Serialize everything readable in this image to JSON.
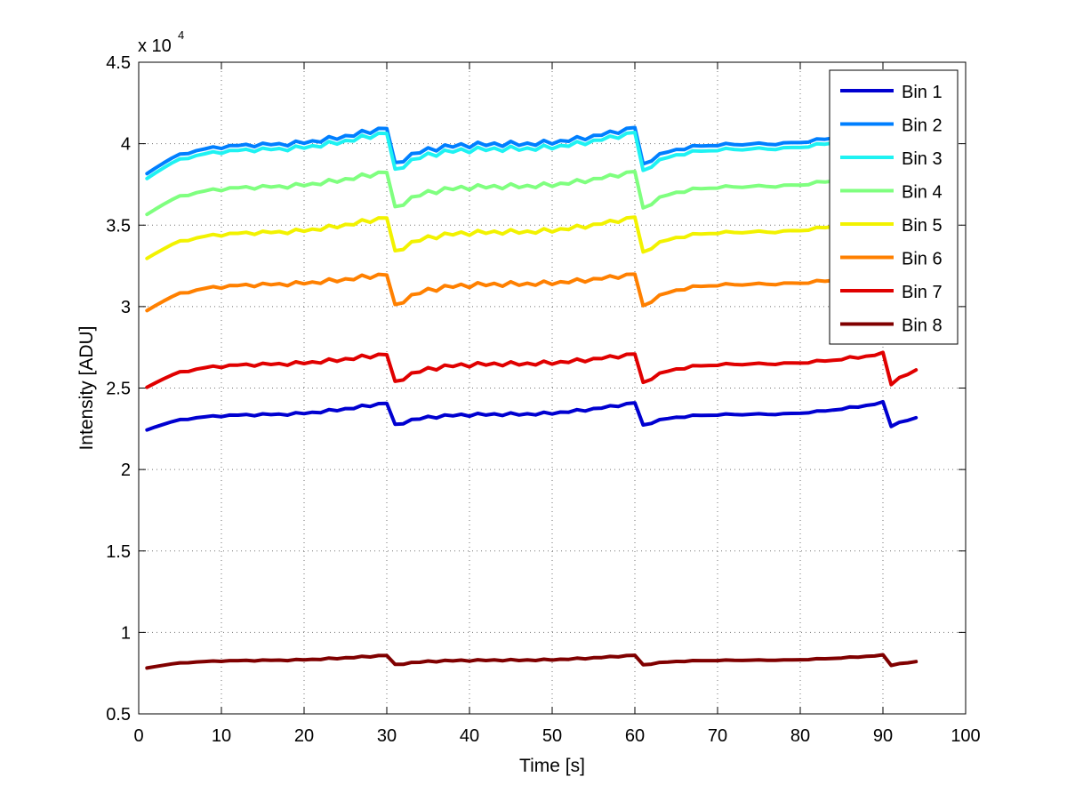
{
  "chart_data": {
    "type": "line",
    "xlabel": "Time [s]",
    "ylabel": "Intensity [ADU]",
    "xlim": [
      0,
      100
    ],
    "ylim": [
      0.5,
      4.5
    ],
    "y_exponent_label": "x 10",
    "y_exponent_power": "4",
    "x_ticks": [
      "0",
      "10",
      "20",
      "30",
      "40",
      "50",
      "60",
      "70",
      "80",
      "90",
      "100"
    ],
    "y_ticks": [
      "0.5",
      "1",
      "1.5",
      "2",
      "2.5",
      "3",
      "3.5",
      "4",
      "4.5"
    ],
    "grid": true,
    "legend_position": "top-right",
    "series": [
      {
        "name": "Bin 1",
        "color": "#0000d0"
      },
      {
        "name": "Bin 2",
        "color": "#007fff"
      },
      {
        "name": "Bin 3",
        "color": "#1ef2f2"
      },
      {
        "name": "Bin 4",
        "color": "#7fff7f"
      },
      {
        "name": "Bin 5",
        "color": "#f2f200"
      },
      {
        "name": "Bin 6",
        "color": "#ff8000"
      },
      {
        "name": "Bin 7",
        "color": "#e00000"
      },
      {
        "name": "Bin 8",
        "color": "#800000"
      }
    ],
    "series_profiles": [
      {
        "name": "Bin 1",
        "start": 2.24,
        "plateau": 2.34,
        "peak": 2.41,
        "drop": 2.27
      },
      {
        "name": "Bin 2",
        "start": 3.81,
        "plateau": 4.0,
        "peak": 4.1,
        "drop": 3.87
      },
      {
        "name": "Bin 3",
        "start": 3.78,
        "plateau": 3.97,
        "peak": 4.07,
        "drop": 3.83
      },
      {
        "name": "Bin 4",
        "start": 3.56,
        "plateau": 3.74,
        "peak": 3.83,
        "drop": 3.6
      },
      {
        "name": "Bin 5",
        "start": 3.29,
        "plateau": 3.46,
        "peak": 3.55,
        "drop": 3.33
      },
      {
        "name": "Bin 6",
        "start": 2.97,
        "plateau": 3.14,
        "peak": 3.2,
        "drop": 3.0
      },
      {
        "name": "Bin 7",
        "start": 2.5,
        "plateau": 2.65,
        "peak": 2.71,
        "drop": 2.53
      },
      {
        "name": "Bin 8",
        "start": 0.78,
        "plateau": 0.83,
        "peak": 0.86,
        "drop": 0.8
      }
    ],
    "x_end": 94
  }
}
